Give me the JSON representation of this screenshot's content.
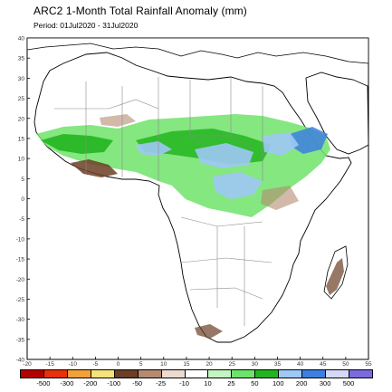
{
  "title": "ARC2 1-Month Total Rainfall Anomaly (mm)",
  "period": "Period: 01Jul2020 - 31Jul2020",
  "axes": {
    "x_ticks": [
      "-20",
      "-15",
      "-10",
      "-5",
      "0",
      "5",
      "10",
      "15",
      "20",
      "25",
      "30",
      "35",
      "40",
      "45",
      "50",
      "55"
    ],
    "y_ticks": [
      "40",
      "35",
      "30",
      "25",
      "20",
      "15",
      "10",
      "5",
      "0",
      "-5",
      "-10",
      "-15",
      "-20",
      "-25",
      "-30",
      "-35",
      "-40"
    ]
  },
  "legend": {
    "labels": [
      "-500",
      "-300",
      "-200",
      "-100",
      "-50",
      "-25",
      "-10",
      "10",
      "25",
      "50",
      "100",
      "200",
      "300",
      "500"
    ],
    "colors": [
      "#b40000",
      "#e8300a",
      "#f2a03a",
      "#f5e27a",
      "#6b3e26",
      "#b48a70",
      "#ecdad0",
      "#ffffff",
      "#c4f5c0",
      "#6ee36a",
      "#22b520",
      "#9ec8f5",
      "#3d7fe0",
      "#d4d9f7",
      "#7a6ae0"
    ]
  },
  "regions": {
    "wet_colors": [
      "#c4f5c0",
      "#6ee36a",
      "#22b520",
      "#9ec8f5",
      "#3d7fe0"
    ],
    "dry_colors": [
      "#ecdad0",
      "#b48a70",
      "#6b3e26"
    ]
  }
}
